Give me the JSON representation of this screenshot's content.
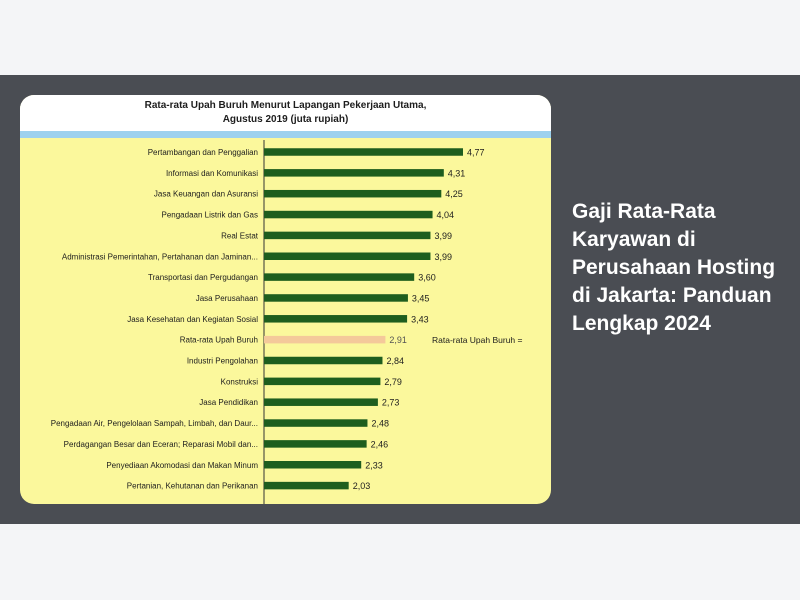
{
  "headline": "Gaji Rata-Rata Karyawan di Perusahaan Hosting di Jakarta: Panduan Lengkap 2024",
  "colors": {
    "bar": "#1e5e1e",
    "highlight_bar": "#f4c99a",
    "background": "#fbf89c",
    "banner": "#4a4d53"
  },
  "chart_data": {
    "type": "bar",
    "orientation": "horizontal",
    "title_line1": "Rata-rata Upah Buruh Menurut Lapangan Pekerjaan Utama,",
    "title_line2": "Agustus 2019 (juta rupiah)",
    "annotation": "Rata-rata Upah Buruh =",
    "highlight_category": "Rata-rata Upah Buruh",
    "categories": [
      "Pertambangan dan Penggalian",
      "Informasi dan Komunikasi",
      "Jasa Keuangan dan Asuransi",
      "Pengadaan Listrik dan Gas",
      "Real Estat",
      "Administrasi Pemerintahan, Pertahanan dan Jaminan...",
      "Transportasi dan Pergudangan",
      "Jasa Perusahaan",
      "Jasa Kesehatan dan Kegiatan Sosial",
      "Rata-rata Upah Buruh",
      "Industri Pengolahan",
      "Konstruksi",
      "Jasa Pendidikan",
      "Pengadaan Air, Pengelolaan Sampah, Limbah, dan Daur...",
      "Perdagangan Besar dan Eceran; Reparasi Mobil dan...",
      "Penyediaan Akomodasi dan Makan Minum",
      "Pertanian, Kehutanan dan Perikanan"
    ],
    "values": [
      4.77,
      4.31,
      4.25,
      4.04,
      3.99,
      3.99,
      3.6,
      3.45,
      3.43,
      2.91,
      2.84,
      2.79,
      2.73,
      2.48,
      2.46,
      2.33,
      2.03
    ],
    "value_labels": [
      "4,77",
      "4,31",
      "4,25",
      "4,04",
      "3,99",
      "3,99",
      "3,60",
      "3,45",
      "3,43",
      "2,91",
      "2,84",
      "2,79",
      "2,73",
      "2,48",
      "2,46",
      "2,33",
      "2,03"
    ],
    "xlim": [
      0,
      5
    ],
    "grid": false,
    "legend": "none"
  }
}
